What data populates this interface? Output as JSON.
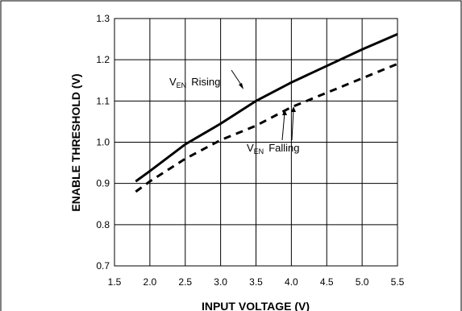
{
  "chart_data": {
    "type": "line",
    "xlabel": "INPUT VOLTAGE (V)",
    "ylabel": "ENABLE THRESHOLD (V)",
    "xlim": [
      1.5,
      5.5
    ],
    "ylim": [
      0.7,
      1.3
    ],
    "xticks": [
      "1.5",
      "2.0",
      "2.5",
      "3.0",
      "3.5",
      "4.0",
      "4.5",
      "5.0",
      "5.5"
    ],
    "yticks": [
      "0.7",
      "0.8",
      "0.9",
      "1.0",
      "1.1",
      "1.2",
      "1.3"
    ],
    "grid": true,
    "series": [
      {
        "name": "EN Rising",
        "style": "solid",
        "x": [
          1.8,
          2.0,
          2.5,
          3.0,
          3.5,
          4.0,
          4.5,
          5.0,
          5.5
        ],
        "y": [
          0.905,
          0.93,
          0.995,
          1.045,
          1.1,
          1.145,
          1.185,
          1.225,
          1.262
        ]
      },
      {
        "name": "EN Falling",
        "style": "dashed",
        "x": [
          1.8,
          2.0,
          2.5,
          3.0,
          3.5,
          4.0,
          4.5,
          5.0,
          5.5
        ],
        "y": [
          0.88,
          0.905,
          0.96,
          1.005,
          1.04,
          1.085,
          1.12,
          1.155,
          1.19
        ]
      }
    ],
    "annotations": [
      {
        "main": "V",
        "sub": "EN",
        "text": "Rising"
      },
      {
        "main": "V",
        "sub": "EN",
        "text": "Falling"
      }
    ]
  }
}
